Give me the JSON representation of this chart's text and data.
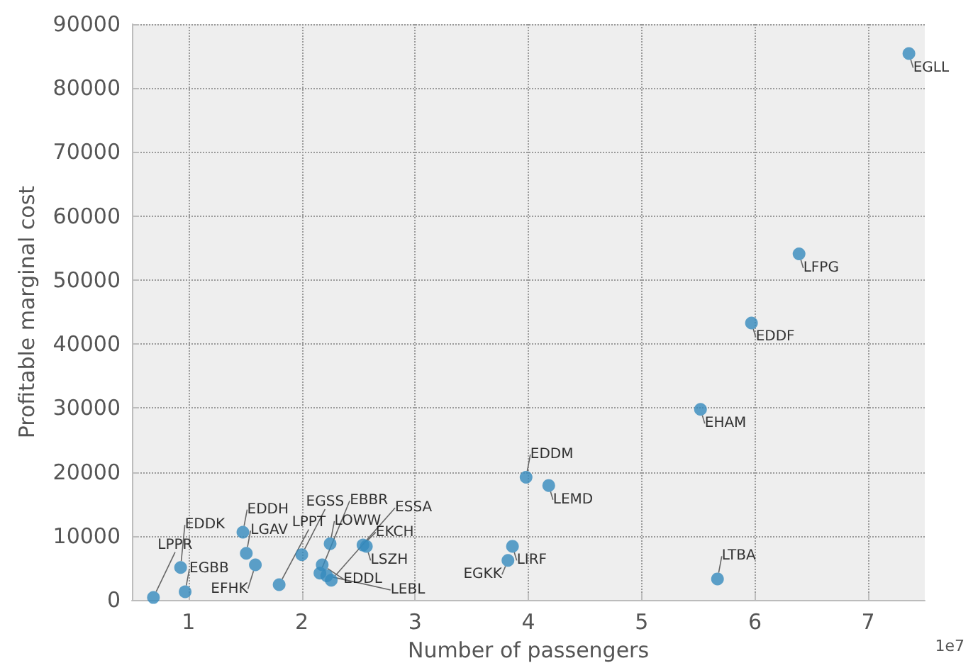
{
  "chart_data": {
    "type": "scatter",
    "xlabel": "Number of passengers",
    "ylabel": "Profitable marginal cost",
    "x": [
      0.69,
      0.97,
      0.93,
      1.48,
      1.51,
      1.59,
      1.8,
      2.0,
      2.25,
      2.54,
      2.57,
      2.18,
      2.16,
      2.22,
      2.26,
      3.86,
      3.82,
      3.98,
      4.18,
      5.52,
      5.67,
      5.97,
      6.39,
      7.36
    ],
    "values": [
      400,
      1300,
      5100,
      10600,
      7300,
      5500,
      2400,
      7100,
      8800,
      8600,
      8400,
      5500,
      4200,
      3800,
      3100,
      8400,
      6200,
      19200,
      17900,
      29800,
      3300,
      43300,
      54100,
      85400
    ],
    "color": "#348abd",
    "marker": "circle",
    "grid": true,
    "xlim": [
      0.5,
      7.5
    ],
    "xticks": [
      1,
      2,
      3,
      4,
      5,
      6,
      7
    ],
    "ylim": [
      0,
      90000
    ],
    "yticks": [
      0,
      10000,
      20000,
      30000,
      40000,
      50000,
      60000,
      70000,
      80000,
      90000
    ],
    "annotations": [
      "1e7",
      {
        "text": "LPPR",
        "x": 0.69,
        "y": 400
      },
      {
        "text": "EGBB",
        "x": 0.97,
        "y": 1300
      },
      {
        "text": "EDDK",
        "x": 0.93,
        "y": 5100
      },
      {
        "text": "EDDH",
        "x": 1.48,
        "y": 10600
      },
      {
        "text": "LGAV",
        "x": 1.51,
        "y": 7300
      },
      {
        "text": "EFHK",
        "x": 1.59,
        "y": 5500
      },
      {
        "text": "LPPT",
        "x": 1.8,
        "y": 2400
      },
      {
        "text": "EGSS",
        "x": 2.0,
        "y": 7100
      },
      {
        "text": "LOWW",
        "x": 2.25,
        "y": 8800
      },
      {
        "text": "EKCH",
        "x": 2.54,
        "y": 8600
      },
      {
        "text": "LSZH",
        "x": 2.57,
        "y": 8400
      },
      {
        "text": "EDDL",
        "x": 2.18,
        "y": 5500
      },
      {
        "text": "EBBR",
        "x": 2.16,
        "y": 4200
      },
      {
        "text": "LEBL",
        "x": 2.22,
        "y": 3800
      },
      {
        "text": "ESSA",
        "x": 2.26,
        "y": 3100
      },
      {
        "text": "LIRF",
        "x": 3.86,
        "y": 8400
      },
      {
        "text": "EGKK",
        "x": 3.82,
        "y": 6200
      },
      {
        "text": "EDDM",
        "x": 3.98,
        "y": 19200
      },
      {
        "text": "LEMD",
        "x": 4.18,
        "y": 17900
      },
      {
        "text": "EHAM",
        "x": 5.52,
        "y": 29800
      },
      {
        "text": "LTBA",
        "x": 5.67,
        "y": 3300
      },
      {
        "text": "EDDF",
        "x": 5.97,
        "y": 43300
      },
      {
        "text": "LFPG",
        "x": 6.39,
        "y": 54100
      },
      {
        "text": "EGLL",
        "x": 7.36,
        "y": 85400
      }
    ]
  }
}
